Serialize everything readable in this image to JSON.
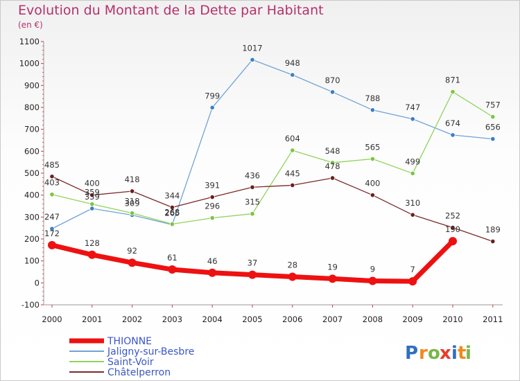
{
  "header": {
    "title": "Evolution du Montant de la Dette par Habitant",
    "unit": "(en €)"
  },
  "logo": {
    "letters": [
      "P",
      "r",
      "o",
      "x",
      "i",
      "t",
      "i"
    ],
    "colors": [
      "#2f6fc0",
      "#f08a1c",
      "#7ab648",
      "#e83c2c",
      "#2f6fc0",
      "#f08a1c",
      "#7ab648"
    ]
  },
  "chart_data": {
    "type": "line",
    "title": "Evolution du Montant de la Dette par Habitant",
    "ylabel": "(en €)",
    "x": [
      "2000",
      "2001",
      "2002",
      "2003",
      "2004",
      "2005",
      "2006",
      "2007",
      "2008",
      "2009",
      "2010",
      "2011"
    ],
    "y_ticks": [
      1100,
      1000,
      900,
      800,
      700,
      600,
      500,
      400,
      300,
      200,
      100,
      0,
      -100
    ],
    "ylim": [
      -100,
      1100
    ],
    "grid": false,
    "legend": "bottom-left",
    "series": [
      {
        "name": "THIONNE",
        "color": "#ee1111",
        "values": [
          172,
          128,
          92,
          61,
          46,
          37,
          28,
          19,
          9,
          7,
          190,
          null
        ],
        "bold": true
      },
      {
        "name": "Jaligny-sur-Besbre",
        "color": "#6fa3d6",
        "marker": "#3a7fc4",
        "values": [
          247,
          339,
          309,
          265,
          799,
          1017,
          948,
          870,
          788,
          747,
          674,
          656
        ]
      },
      {
        "name": "Saint-Voir",
        "color": "#8fd35a",
        "marker": "#7cc442",
        "values": [
          403,
          359,
          318,
          268,
          296,
          315,
          604,
          548,
          565,
          499,
          871,
          757
        ]
      },
      {
        "name": "Châtelperron",
        "color": "#7a2a2a",
        "marker": "#6a1f1f",
        "values": [
          485,
          400,
          418,
          344,
          391,
          436,
          445,
          478,
          400,
          310,
          252,
          189
        ]
      }
    ]
  }
}
